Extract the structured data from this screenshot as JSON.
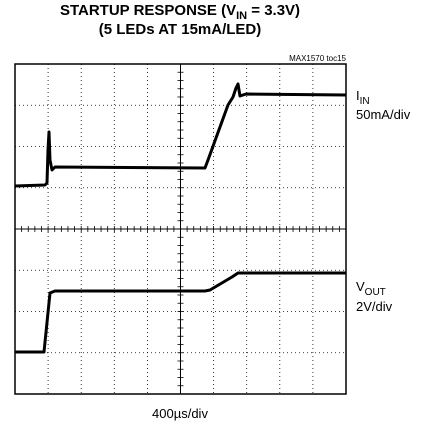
{
  "title": {
    "line1": {
      "before": "STARTUP RESPONSE (V",
      "sub": "IN",
      "after": " = 3.3V)"
    },
    "line2": "(5 LEDs AT 15mA/LED)"
  },
  "note": "MAX1570 toc15",
  "traces": [
    {
      "name": {
        "main": "I",
        "sub": "IN"
      },
      "scale": "50mA/div"
    },
    {
      "name": {
        "main": "V",
        "sub": "OUT"
      },
      "scale": "2V/div"
    }
  ],
  "timebase": "400µs/div"
}
